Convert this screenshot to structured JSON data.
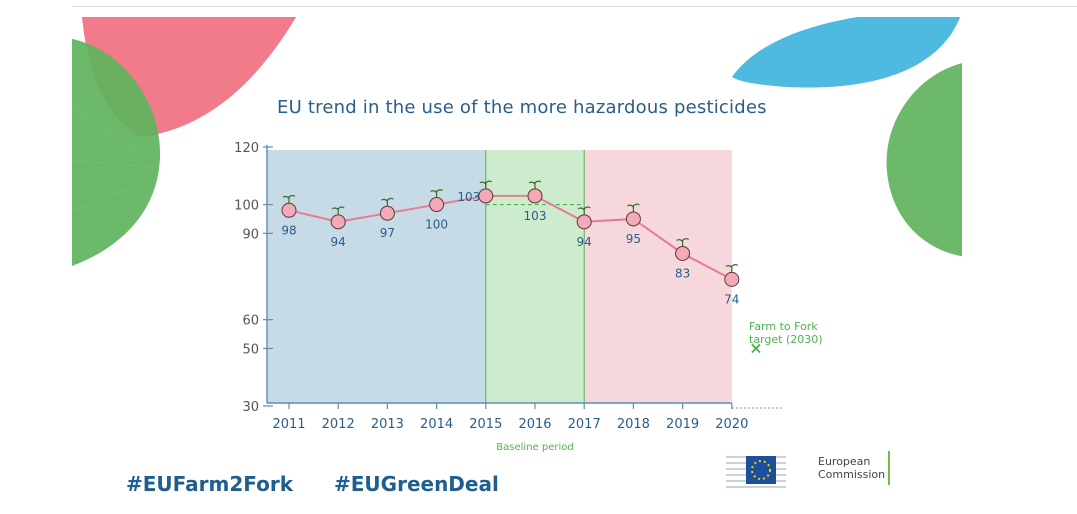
{
  "title": "EU trend in the use of the more hazardous pesticides",
  "hashtags": [
    "#EUFarm2Fork",
    "#EUGreenDeal"
  ],
  "logo": {
    "line1": "European",
    "line2": "Commission"
  },
  "colors": {
    "title": "#2a5d8a",
    "line": "#e57b94",
    "axis": "#5a8fb3",
    "band_blue": "#c7dbe6",
    "band_green": "#cdeccd",
    "band_pink": "#f6d7dc",
    "target": "#4fb24f"
  },
  "chart_data": {
    "type": "line",
    "title": "EU trend in the use of the more hazardous pesticides",
    "categories": [
      "2011",
      "2012",
      "2013",
      "2014",
      "2015",
      "2016",
      "2017",
      "2018",
      "2019",
      "2020"
    ],
    "values": [
      98,
      94,
      97,
      100,
      103,
      103,
      94,
      95,
      83,
      74
    ],
    "y_ticks": [
      30,
      50,
      60,
      90,
      100,
      120
    ],
    "ylim": [
      30,
      120
    ],
    "baseline_value": 100,
    "baseline_label": "Baseline period",
    "baseline_range": [
      "2015",
      "2017"
    ],
    "target": {
      "label_line1": "Farm to Fork",
      "label_line2": "target (2030)",
      "value": 50,
      "marker": "×"
    }
  }
}
